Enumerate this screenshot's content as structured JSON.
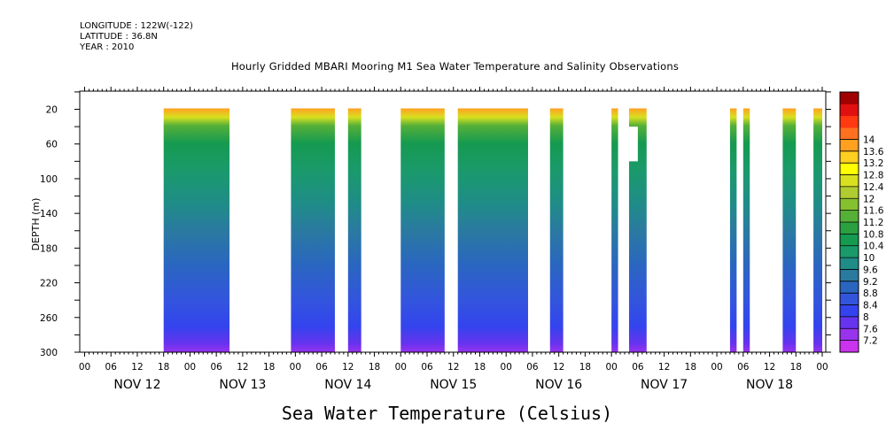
{
  "header": {
    "longitude": "LONGITUDE : 122W(-122)",
    "latitude": "LATITUDE : 36.8N",
    "year": "YEAR : 2010"
  },
  "chart_data": {
    "type": "heatmap",
    "title": "Hourly Gridded MBARI Mooring M1 Sea Water Temperature and Salinity Observations",
    "xlabel": "",
    "ylabel": "DEPTH (m)",
    "colorbar_label": "Sea Water Temperature (Celsius)",
    "x_hour_ticks": [
      "00",
      "06",
      "12",
      "18",
      "00",
      "06",
      "12",
      "18",
      "00",
      "06",
      "12",
      "18",
      "00",
      "06",
      "12",
      "18",
      "00",
      "06",
      "12",
      "18",
      "00",
      "06",
      "12",
      "18",
      "00",
      "06",
      "12",
      "18",
      "00"
    ],
    "x_day_labels": [
      "NOV 12",
      "NOV 13",
      "NOV 14",
      "NOV 15",
      "NOV 16",
      "NOV 17",
      "NOV 18"
    ],
    "xlim_hours": [
      0,
      168
    ],
    "ylim_m": [
      300,
      10
    ],
    "y_ticks": [
      20,
      60,
      100,
      140,
      180,
      220,
      260,
      300
    ],
    "colorbar_levels": [
      7.2,
      7.6,
      8,
      8.4,
      8.8,
      9.2,
      9.6,
      10,
      10.4,
      10.8,
      11.2,
      11.6,
      12,
      12.4,
      12.8,
      13.2,
      13.6,
      14
    ],
    "colorbar_colors": [
      "#cc33ee",
      "#9933ee",
      "#6633ee",
      "#3344ee",
      "#3355dd",
      "#2a66c0",
      "#2a7aa0",
      "#1f8c88",
      "#1a9a6a",
      "#159a50",
      "#2aa040",
      "#55b038",
      "#85c030",
      "#b0cc30",
      "#d8e020",
      "#ffff00",
      "#ffd020",
      "#ffa020",
      "#ff7020",
      "#ff3a10",
      "#e01010",
      "#a00000"
    ],
    "data_segments_hours": [
      [
        18,
        33
      ],
      [
        47,
        57
      ],
      [
        60,
        63
      ],
      [
        72,
        82
      ],
      [
        85,
        101
      ],
      [
        106,
        109
      ],
      [
        120,
        121.5
      ],
      [
        124,
        128
      ],
      [
        147,
        148.5
      ],
      [
        150,
        151.5
      ],
      [
        159,
        162
      ],
      [
        166,
        168
      ]
    ],
    "gap_in_segment": {
      "hours": [
        124,
        126
      ],
      "depth_m": [
        40,
        80
      ]
    },
    "profile_temperature": [
      {
        "depth": 20,
        "temp": 13.6
      },
      {
        "depth": 30,
        "temp": 12.4
      },
      {
        "depth": 40,
        "temp": 11.2
      },
      {
        "depth": 60,
        "temp": 10.4
      },
      {
        "depth": 90,
        "temp": 10.0
      },
      {
        "depth": 130,
        "temp": 9.6
      },
      {
        "depth": 160,
        "temp": 9.2
      },
      {
        "depth": 200,
        "temp": 8.8
      },
      {
        "depth": 240,
        "temp": 8.4
      },
      {
        "depth": 270,
        "temp": 8.0
      },
      {
        "depth": 290,
        "temp": 7.6
      },
      {
        "depth": 300,
        "temp": 7.2
      }
    ]
  }
}
